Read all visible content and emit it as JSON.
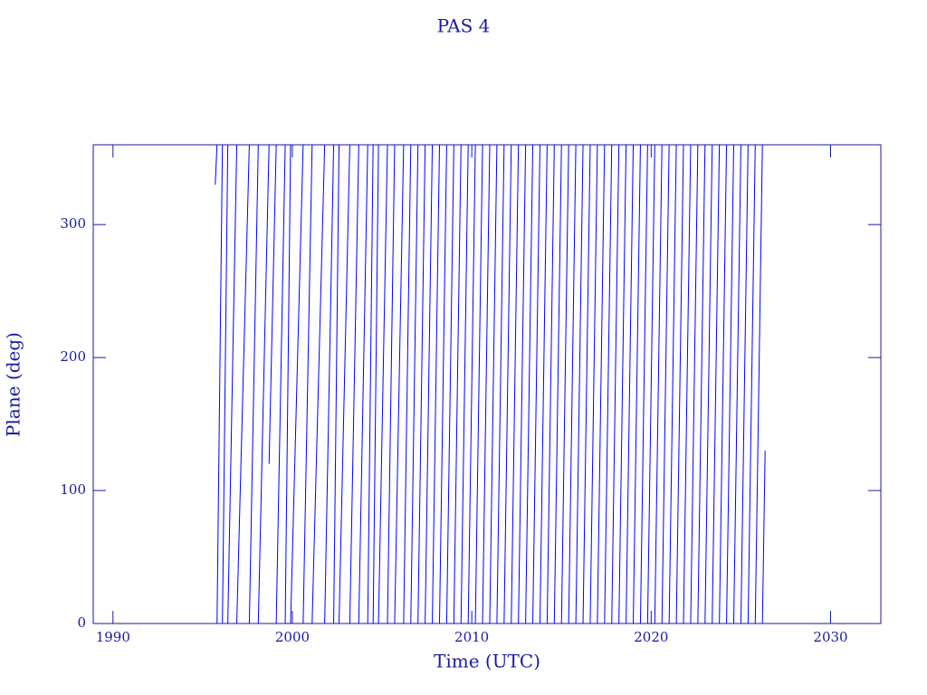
{
  "chart_data": {
    "type": "line",
    "title": "PAS 4",
    "x_label": "Time (UTC)",
    "y_label": "Plane (deg)",
    "color": "#0000ff",
    "x": [
      1995.7,
      1995.8,
      null,
      1995.8,
      1996.1,
      null,
      1996.1,
      1996.4,
      null,
      1996.4,
      1996.9,
      null,
      1996.9,
      1997.6,
      null,
      1997.6,
      1998.1,
      null,
      1998.1,
      1998.7,
      null,
      1998.7,
      1999.1,
      null,
      1999.1,
      1999.6,
      null,
      1999.6,
      1999.9,
      null,
      1999.9,
      2000.6,
      null,
      2000.6,
      2001.1,
      null,
      2001.1,
      2001.8,
      null,
      2001.8,
      2002.3,
      null,
      2002.3,
      2002.6,
      null,
      2002.6,
      2003.2,
      null,
      2003.2,
      2003.7,
      null,
      2003.7,
      2004.2,
      null,
      2004.2,
      2004.5,
      null,
      2004.5,
      2004.8,
      null,
      2004.8,
      2005.3,
      null,
      2005.3,
      2005.7,
      null,
      2005.7,
      2006.2,
      null,
      2006.2,
      2006.6,
      null,
      2006.6,
      2007.0,
      null,
      2007.0,
      2007.4,
      null,
      2007.4,
      2007.8,
      null,
      2007.8,
      2008.2,
      null,
      2008.2,
      2008.6,
      null,
      2008.6,
      2009.0,
      null,
      2009.0,
      2009.4,
      null,
      2009.4,
      2009.8,
      null,
      2009.8,
      2010.2,
      null,
      2010.2,
      2010.6,
      null,
      2010.6,
      2011.0,
      null,
      2011.0,
      2011.4,
      null,
      2011.4,
      2011.8,
      null,
      2011.8,
      2012.2,
      null,
      2012.2,
      2012.6,
      null,
      2012.6,
      2013.0,
      null,
      2013.0,
      2013.4,
      null,
      2013.4,
      2013.8,
      null,
      2013.8,
      2014.2,
      null,
      2014.2,
      2014.6,
      null,
      2014.6,
      2015.0,
      null,
      2015.0,
      2015.4,
      null,
      2015.4,
      2015.8,
      null,
      2015.8,
      2016.2,
      null,
      2016.2,
      2016.6,
      null,
      2016.6,
      2017.0,
      null,
      2017.0,
      2017.4,
      null,
      2017.4,
      2017.8,
      null,
      2017.8,
      2018.2,
      null,
      2018.2,
      2018.6,
      null,
      2018.6,
      2019.0,
      null,
      2019.0,
      2019.4,
      null,
      2019.4,
      2019.8,
      null,
      2019.8,
      2020.2,
      null,
      2020.2,
      2020.6,
      null,
      2020.6,
      2021.0,
      null,
      2021.0,
      2021.4,
      null,
      2021.4,
      2021.8,
      null,
      2021.8,
      2022.2,
      null,
      2022.2,
      2022.6,
      null,
      2022.6,
      2023.0,
      null,
      2023.0,
      2023.4,
      null,
      2023.4,
      2023.8,
      null,
      2023.8,
      2024.2,
      null,
      2024.2,
      2024.6,
      null,
      2024.6,
      2025.0,
      null,
      2025.0,
      2025.4,
      null,
      2025.4,
      2025.8,
      null,
      2025.8,
      2026.2,
      null,
      2026.2,
      2026.35
    ],
    "values": [
      330,
      360,
      null,
      0,
      360,
      null,
      0,
      360,
      null,
      0,
      360,
      null,
      0,
      360,
      null,
      0,
      360,
      null,
      0,
      360,
      null,
      120,
      360,
      null,
      0,
      360,
      null,
      0,
      360,
      null,
      0,
      360,
      null,
      0,
      360,
      null,
      0,
      360,
      null,
      0,
      360,
      null,
      0,
      360,
      null,
      0,
      360,
      null,
      0,
      360,
      null,
      0,
      360,
      null,
      0,
      360,
      null,
      0,
      360,
      null,
      0,
      360,
      null,
      0,
      360,
      null,
      0,
      360,
      null,
      0,
      360,
      null,
      0,
      360,
      null,
      0,
      360,
      null,
      0,
      360,
      null,
      0,
      360,
      null,
      0,
      360,
      null,
      0,
      360,
      null,
      0,
      360,
      null,
      0,
      360,
      null,
      0,
      360,
      null,
      0,
      360,
      null,
      0,
      360,
      null,
      0,
      360,
      null,
      0,
      360,
      null,
      0,
      360,
      null,
      0,
      360,
      null,
      0,
      360,
      null,
      0,
      360,
      null,
      0,
      360,
      null,
      0,
      360,
      null,
      0,
      360,
      null,
      0,
      360,
      null,
      0,
      360,
      null,
      0,
      360,
      null,
      0,
      360,
      null,
      0,
      360,
      null,
      0,
      360,
      null,
      0,
      360,
      null,
      0,
      360,
      null,
      0,
      360,
      null,
      0,
      360,
      null,
      0,
      360,
      null,
      0,
      360,
      null,
      0,
      360,
      null,
      0,
      360,
      null,
      0,
      360,
      null,
      0,
      360,
      null,
      0,
      360,
      null,
      0,
      360,
      null,
      0,
      360,
      null,
      0,
      360,
      null,
      0,
      360,
      null,
      0,
      360,
      null,
      0,
      360,
      null,
      0,
      360,
      null,
      0,
      360,
      null,
      0,
      360,
      null,
      0,
      360,
      null,
      0,
      360,
      null,
      0,
      360,
      null,
      0,
      130
    ],
    "xlim": [
      1988.9,
      2032.8
    ],
    "xticks": [
      1990,
      2000,
      2010,
      2020,
      2030
    ],
    "ylim": [
      0,
      360
    ],
    "yticks": [
      0,
      100,
      200,
      300
    ]
  }
}
